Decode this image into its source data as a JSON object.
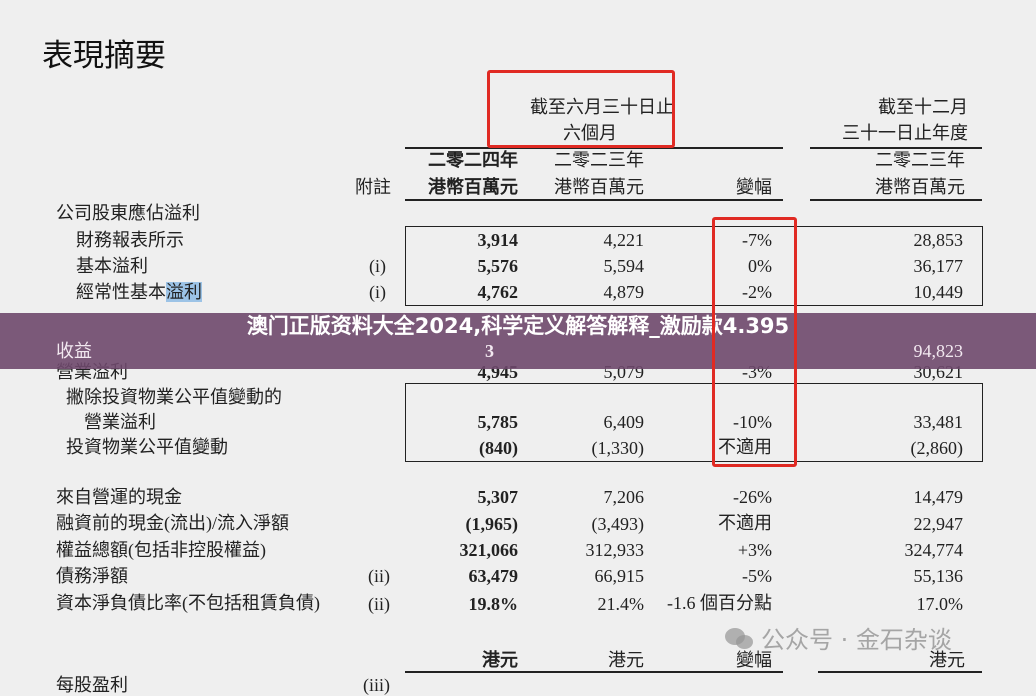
{
  "title": "表現摘要",
  "header": {
    "period_six_months_line1": "截至六月三十日止",
    "period_six_months_line2": "六個月",
    "period_year_line1": "截至十二月",
    "period_year_line2": "三十一日止年度",
    "note": "附註",
    "col_2024_year": "二零二四年",
    "col_2024_unit": "港幣百萬元",
    "col_2023_year": "二零二三年",
    "col_2023_unit": "港幣百萬元",
    "col_change": "變幅",
    "col_fy2023_year": "二零二三年",
    "col_fy2023_unit": "港幣百萬元"
  },
  "section_label": "公司股東應佔溢利",
  "rows": [
    {
      "label": "財務報表所示",
      "note": "",
      "v2024": "3,914",
      "v2023": "4,221",
      "change": "-7%",
      "fy2023": "28,853"
    },
    {
      "label": "基本溢利",
      "note": "(i)",
      "v2024": "5,576",
      "v2023": "5,594",
      "change": "0%",
      "fy2023": "36,177"
    },
    {
      "label": "經常性基本",
      "label_highlight": "溢利",
      "note": "(i)",
      "v2024": "4,762",
      "v2023": "4,879",
      "change": "-2%",
      "fy2023": "10,449"
    },
    {
      "label": "收益",
      "note": "",
      "v2024": "3",
      "v2023": "",
      "change": "",
      "fy2023": "94,823"
    },
    {
      "label": "營業溢利",
      "note": "",
      "v2024": "4,945",
      "v2023": "5,079",
      "change": "-3%",
      "fy2023": "30,621"
    },
    {
      "label": "撇除投資物業公平值變動的",
      "label2": "營業溢利",
      "note": "",
      "v2024": "5,785",
      "v2023": "6,409",
      "change": "-10%",
      "fy2023": "33,481"
    },
    {
      "label": "投資物業公平值變動",
      "note": "",
      "v2024": "(840)",
      "v2023": "(1,330)",
      "change": "不適用",
      "fy2023": "(2,860)"
    },
    {
      "label": "來自營運的現金",
      "note": "",
      "v2024": "5,307",
      "v2023": "7,206",
      "change": "-26%",
      "fy2023": "14,479"
    },
    {
      "label": "融資前的現金(流出)/流入淨額",
      "note": "",
      "v2024": "(1,965)",
      "v2023": "(3,493)",
      "change": "不適用",
      "fy2023": "22,947"
    },
    {
      "label": "權益總額(包括非控股權益)",
      "note": "",
      "v2024": "321,066",
      "v2023": "312,933",
      "change": "+3%",
      "fy2023": "324,774"
    },
    {
      "label": "債務淨額",
      "note": "(ii)",
      "v2024": "63,479",
      "v2023": "66,915",
      "change": "-5%",
      "fy2023": "55,136"
    },
    {
      "label": "資本淨負債比率(不包括租賃負債)",
      "note": "(ii)",
      "v2024": "19.8%",
      "v2023": "21.4%",
      "change": "-1.6 個百分點",
      "fy2023": "17.0%"
    }
  ],
  "footer_header": {
    "c2024": "港元",
    "c2023": "港元",
    "change": "變幅",
    "fy2023": "港元"
  },
  "partial_row": {
    "label": "每股盈利",
    "note": "(iii)"
  },
  "banner_text": "澳门正版资料大全2024,科学定义解答解释_激励款4.395",
  "watermark": "公众号 · 金石杂谈",
  "colors": {
    "annotation_red": "#e02a23",
    "banner": "#6e486c",
    "background": "#efefef"
  }
}
